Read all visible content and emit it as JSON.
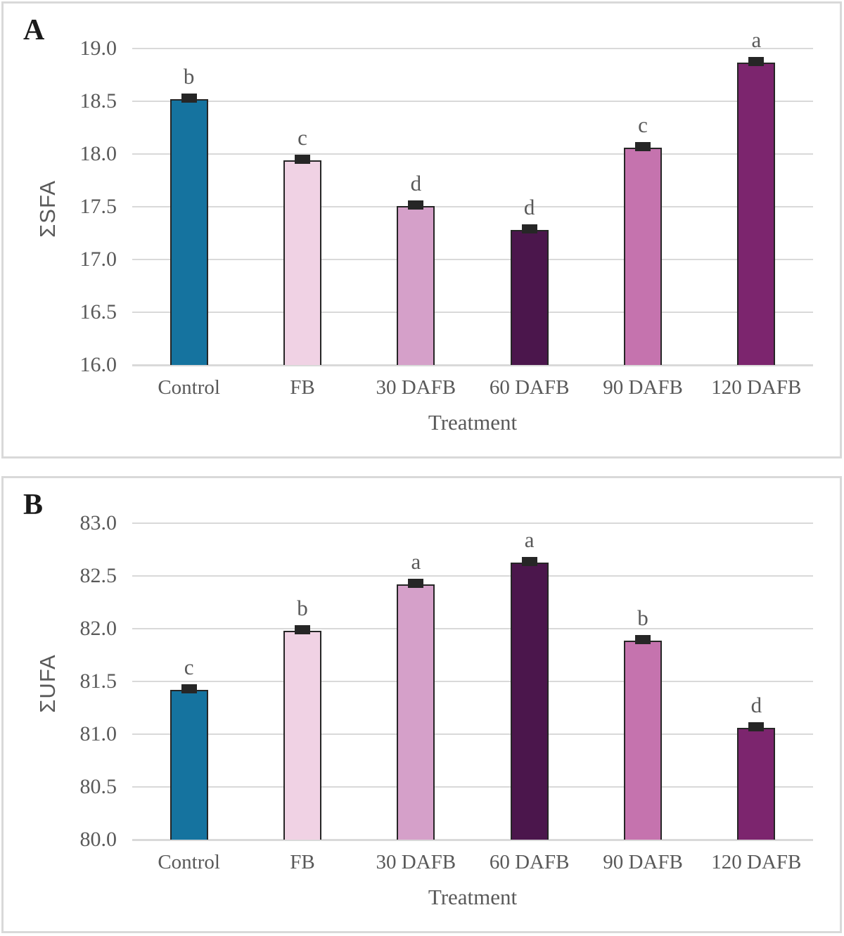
{
  "figure": {
    "panels": [
      "A",
      "B"
    ],
    "x_axis_title": "Treatment",
    "grid_color": "#d9d9d9",
    "text_color": "#595959",
    "bar_outline_color": "#262626",
    "error_cap_color": "#262626",
    "panel_border_color": "#d9d9d9"
  },
  "chart_data": [
    {
      "type": "bar",
      "panel": "A",
      "ylabel": "ΣSFA",
      "xlabel": "Treatment",
      "ylim": [
        16.0,
        19.0
      ],
      "ytick_step": 0.5,
      "ytick_labels": [
        "19.0",
        "18.5",
        "18.0",
        "17.5",
        "17.0",
        "16.5",
        "16.0"
      ],
      "categories": [
        "Control",
        "FB",
        "30 DAFB",
        "60 DAFB",
        "90 DAFB",
        "120 DAFB"
      ],
      "values": [
        18.52,
        17.94,
        17.51,
        17.28,
        18.06,
        18.87
      ],
      "sig_letters": [
        "b",
        "c",
        "d",
        "d",
        "c",
        "a"
      ],
      "has_error_bars": true,
      "bar_colors": [
        "#15739f",
        "#f0d2e4",
        "#d5a0c9",
        "#4b164c",
        "#c573ae",
        "#7c256e"
      ],
      "grid": true,
      "legend": "none"
    },
    {
      "type": "bar",
      "panel": "B",
      "ylabel": "ΣUFA",
      "xlabel": "Treatment",
      "ylim": [
        80.0,
        83.0
      ],
      "ytick_step": 0.5,
      "ytick_labels": [
        "83.0",
        "82.5",
        "82.0",
        "81.5",
        "81.0",
        "80.5",
        "80.0"
      ],
      "categories": [
        "Control",
        "FB",
        "30 DAFB",
        "60 DAFB",
        "90 DAFB",
        "120 DAFB"
      ],
      "values": [
        81.42,
        81.98,
        82.42,
        82.63,
        81.89,
        81.06
      ],
      "sig_letters": [
        "c",
        "b",
        "a",
        "a",
        "b",
        "d"
      ],
      "has_error_bars": true,
      "bar_colors": [
        "#15739f",
        "#f0d2e4",
        "#d5a0c9",
        "#4b164c",
        "#c573ae",
        "#7c256e"
      ],
      "grid": true,
      "legend": "none"
    }
  ]
}
